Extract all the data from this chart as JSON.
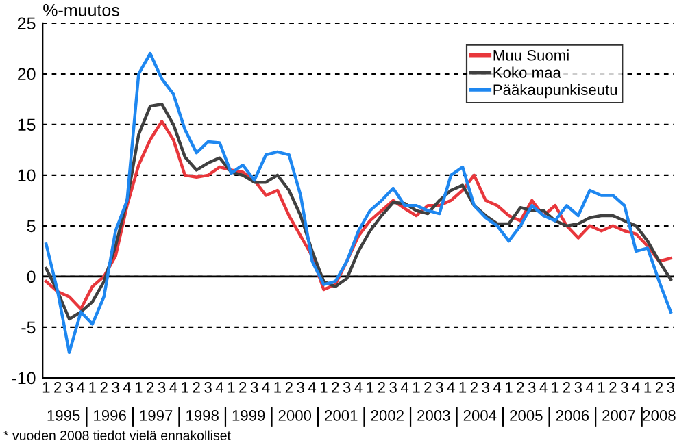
{
  "chart_data": {
    "type": "line",
    "ylabel": "%-muutos",
    "categories": [
      "1",
      "2",
      "3",
      "4",
      "1",
      "2",
      "3",
      "4",
      "1",
      "2",
      "3",
      "4",
      "1",
      "2",
      "3",
      "4",
      "1",
      "2",
      "3",
      "4",
      "1",
      "2",
      "3",
      "4",
      "1",
      "2",
      "3",
      "4",
      "1",
      "2",
      "3",
      "4",
      "1",
      "2",
      "3",
      "4",
      "1",
      "2",
      "3",
      "4",
      "1",
      "2",
      "3",
      "4",
      "1",
      "2",
      "3",
      "4",
      "1",
      "2",
      "3",
      "4",
      "1",
      "2",
      "3"
    ],
    "series": [
      {
        "name": "Muu Suomi",
        "color": "#e8373c",
        "values": [
          -0.5,
          -1.5,
          -2,
          -3.2,
          -1,
          0,
          2,
          7,
          11,
          13.5,
          15.3,
          13.5,
          10,
          9.8,
          10,
          10.8,
          10.5,
          10.3,
          9.5,
          8,
          8.5,
          6,
          4,
          2,
          -1.3,
          -0.8,
          1.5,
          4,
          5.5,
          6.5,
          7.5,
          6.7,
          6,
          7,
          7,
          7.5,
          8.5,
          10,
          7.5,
          7,
          6,
          5.5,
          7.5,
          6,
          7,
          5,
          3.8,
          5,
          4.5,
          5,
          4.5,
          4.2,
          3,
          1.5,
          1.8
        ]
      },
      {
        "name": "Koko maa",
        "color": "#404040",
        "values": [
          0.8,
          -1.5,
          -4.2,
          -3.5,
          -2.5,
          -0.5,
          3,
          7.5,
          14,
          16.8,
          17,
          15,
          11.8,
          10.5,
          11.2,
          11.7,
          10.3,
          10,
          9.3,
          9.3,
          10,
          8.5,
          6,
          2.5,
          -0.5,
          -1,
          -0.2,
          2.5,
          4.5,
          6,
          7.3,
          7.2,
          6.5,
          6.2,
          7.5,
          8.5,
          9,
          7,
          6,
          5.2,
          5.2,
          6.8,
          6.5,
          6.5,
          5.5,
          5,
          5.2,
          5.8,
          6,
          6,
          5.5,
          5,
          3.5,
          1.5,
          -0.3
        ]
      },
      {
        "name": "Pääkaupunkiseutu",
        "color": "#1e87f0",
        "values": [
          3.2,
          -1.5,
          -7.5,
          -3.5,
          -4.7,
          -2,
          4.5,
          7.5,
          20,
          22,
          19.5,
          18,
          14.5,
          12.2,
          13.3,
          13.2,
          10.2,
          11,
          9.5,
          12,
          12.3,
          12,
          8,
          1.5,
          -0.8,
          -0.5,
          1.5,
          4.5,
          6.5,
          7.5,
          8.7,
          7,
          7,
          6.5,
          6.2,
          10,
          10.8,
          7,
          5.8,
          5,
          3.5,
          5,
          7,
          6,
          5.5,
          7,
          6,
          8.5,
          8,
          8,
          7,
          2.5,
          2.8,
          -0.5,
          -3.5
        ]
      }
    ],
    "ylim": [
      -10,
      25
    ],
    "yticks": [
      -10,
      -5,
      0,
      5,
      10,
      15,
      20,
      25
    ],
    "grid": "y",
    "legend": "top right",
    "marker": "none",
    "line_style": "solid",
    "ref_lines": [
      {
        "axis": "y",
        "value": 0,
        "color": "#000000",
        "line_style": "solid"
      }
    ],
    "annotations": [
      "1995",
      "1996",
      "1997",
      "1998",
      "1999",
      "2000",
      "2001",
      "2002",
      "2003",
      "2004",
      "2005",
      "2006",
      "2007",
      "2008",
      "* vuoden 2008 tiedot vielä ennakolliset"
    ]
  }
}
